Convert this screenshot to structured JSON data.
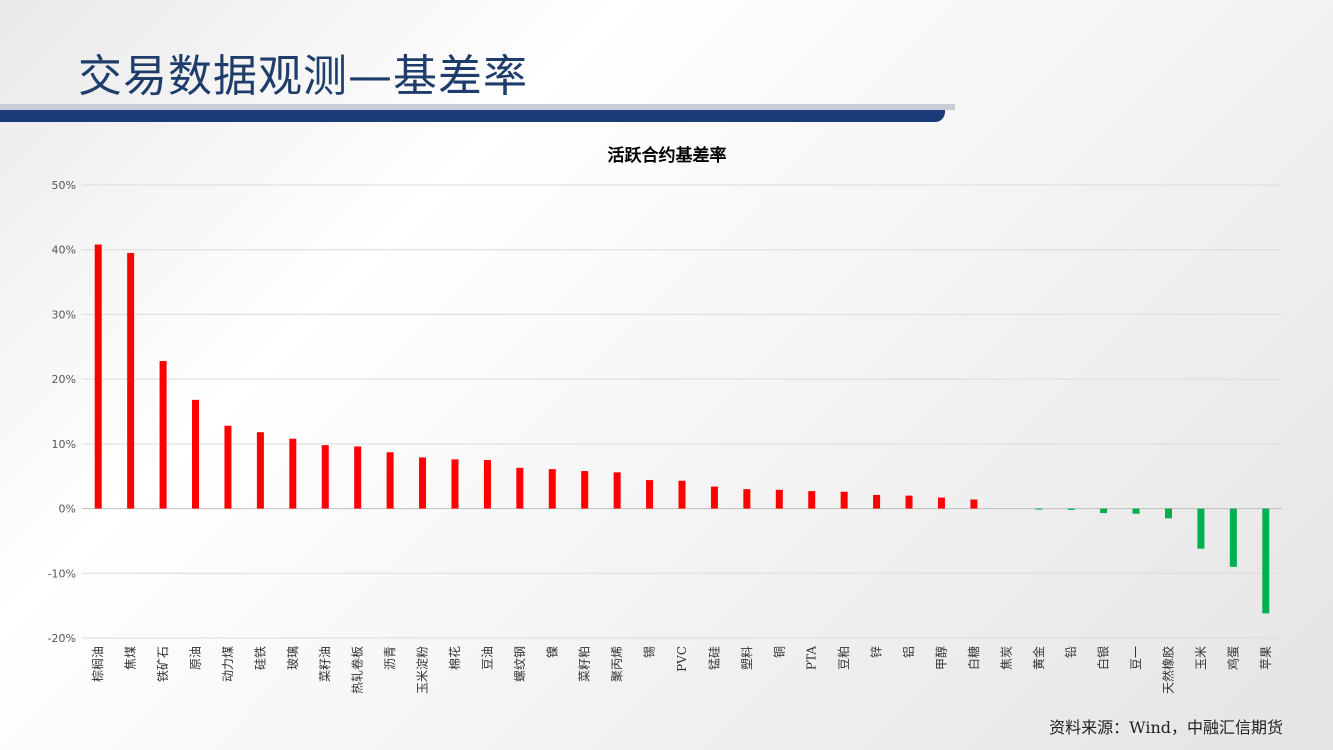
{
  "header": {
    "title": "交易数据观测—基差率"
  },
  "footer": {
    "source": "资料来源：Wind，中融汇信期货"
  },
  "colors": {
    "positive": "#ff0000",
    "negative": "#00b050",
    "title_bar": "#1a3b78",
    "title_text": "#1f3d6b"
  },
  "chart_data": {
    "type": "bar",
    "title": "活跃合约基差率",
    "xlabel": "",
    "ylabel": "",
    "ylim": [
      -0.2,
      0.5
    ],
    "yticks": [
      0.5,
      0.4,
      0.3,
      0.2,
      0.1,
      0,
      -0.1,
      -0.2
    ],
    "ytick_labels": [
      "50%",
      "40%",
      "30%",
      "20%",
      "10%",
      "0%",
      "-10%",
      "-20%"
    ],
    "grid": true,
    "categories": [
      "棕榈油",
      "焦煤",
      "铁矿石",
      "原油",
      "动力煤",
      "硅铁",
      "玻璃",
      "菜籽油",
      "热轧卷板",
      "沥青",
      "玉米淀粉",
      "棉花",
      "豆油",
      "螺纹钢",
      "镍",
      "菜籽粕",
      "聚丙烯",
      "锡",
      "PVC",
      "锰硅",
      "塑料",
      "铜",
      "PTA",
      "豆粕",
      "锌",
      "铝",
      "甲醇",
      "白糖",
      "焦炭",
      "黄金",
      "铅",
      "白银",
      "豆一",
      "天然橡胶",
      "玉米",
      "鸡蛋",
      "苹果"
    ],
    "values": [
      0.408,
      0.395,
      0.228,
      0.168,
      0.128,
      0.118,
      0.108,
      0.098,
      0.096,
      0.087,
      0.079,
      0.076,
      0.075,
      0.063,
      0.061,
      0.058,
      0.056,
      0.044,
      0.043,
      0.034,
      0.03,
      0.029,
      0.027,
      0.026,
      0.021,
      0.02,
      0.017,
      0.014,
      0.0,
      -0.001,
      -0.002,
      -0.007,
      -0.008,
      -0.015,
      -0.062,
      -0.09,
      -0.162
    ]
  }
}
